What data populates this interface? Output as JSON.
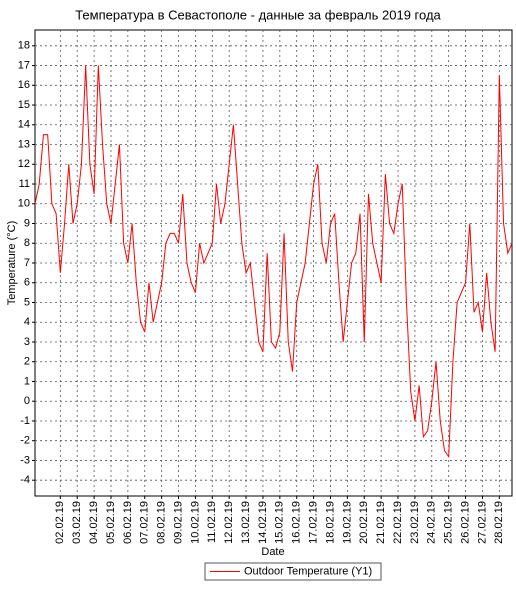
{
  "chart_data": {
    "type": "line",
    "title": "Температура в Севастополе - данные за февраль 2019 года",
    "x_label": "Date",
    "y_label": "Temperature (°C)",
    "categories": [
      null,
      null,
      null,
      null,
      null,
      null,
      "02.02.19",
      null,
      null,
      null,
      "03.02.19",
      null,
      null,
      null,
      "04.02.19",
      null,
      null,
      null,
      "05.02.19",
      null,
      null,
      null,
      "06.02.19",
      null,
      null,
      null,
      "07.02.19",
      null,
      null,
      null,
      "08.02.19",
      null,
      null,
      null,
      "09.02.19",
      null,
      null,
      null,
      "10.02.19",
      null,
      null,
      null,
      "11.02.19",
      null,
      null,
      null,
      "12.02.19",
      null,
      null,
      null,
      "13.02.19",
      null,
      null,
      null,
      "14.02.19",
      null,
      null,
      null,
      "15.02.19",
      null,
      null,
      null,
      "16.02.19",
      null,
      null,
      null,
      "17.02.19",
      null,
      null,
      null,
      "18.02.19",
      null,
      null,
      null,
      "19.02.19",
      null,
      null,
      null,
      "20.02.19",
      null,
      null,
      null,
      "21.02.19",
      null,
      null,
      null,
      "22.02.19",
      null,
      null,
      null,
      "23.02.19",
      null,
      null,
      null,
      "24.02.19",
      null,
      null,
      null,
      "25.02.19",
      null,
      null,
      null,
      "26.02.19",
      null,
      null,
      null,
      "27.02.19",
      null,
      null,
      null,
      "28.02.19",
      null,
      null,
      null
    ],
    "series": [
      {
        "name": "Outdoor Temperature (Y1)",
        "color": "#ff0000",
        "values": [
          10,
          11,
          13.5,
          13.5,
          10,
          9.5,
          6.5,
          9,
          12,
          9,
          10,
          12,
          17,
          12,
          10.5,
          17,
          13,
          10,
          9,
          11,
          13,
          8,
          7,
          9,
          6,
          4,
          3.5,
          6,
          4,
          5,
          6,
          8,
          8.5,
          8.5,
          8,
          10.5,
          7,
          6,
          5.5,
          8,
          7,
          7.5,
          8,
          11,
          9,
          10,
          12,
          14,
          11,
          8,
          6.5,
          7,
          5,
          3,
          2.5,
          7.5,
          3,
          2.7,
          3.5,
          8.5,
          3,
          1.5,
          5,
          6,
          7,
          9,
          11,
          12,
          8,
          7,
          9,
          9.5,
          6,
          3,
          5,
          7,
          7.5,
          9.5,
          3,
          10.5,
          8,
          7,
          6,
          11.5,
          9,
          8.5,
          10,
          11,
          5,
          0.5,
          -1,
          0.8,
          -1.8,
          -1.5,
          0,
          2,
          -1,
          -2.5,
          -2.8,
          2,
          5,
          5.5,
          6,
          9,
          4.5,
          5,
          3.5,
          6.5,
          4,
          2.5,
          16.5,
          9,
          7.5,
          8
        ]
      }
    ],
    "ylim": [
      -4.8,
      18.8
    ],
    "yticks": [
      -4,
      -3,
      -2,
      -1,
      0,
      1,
      2,
      3,
      4,
      5,
      6,
      7,
      8,
      9,
      10,
      11,
      12,
      13,
      14,
      15,
      16,
      17,
      18
    ],
    "grid": true,
    "legend": "bottom"
  }
}
